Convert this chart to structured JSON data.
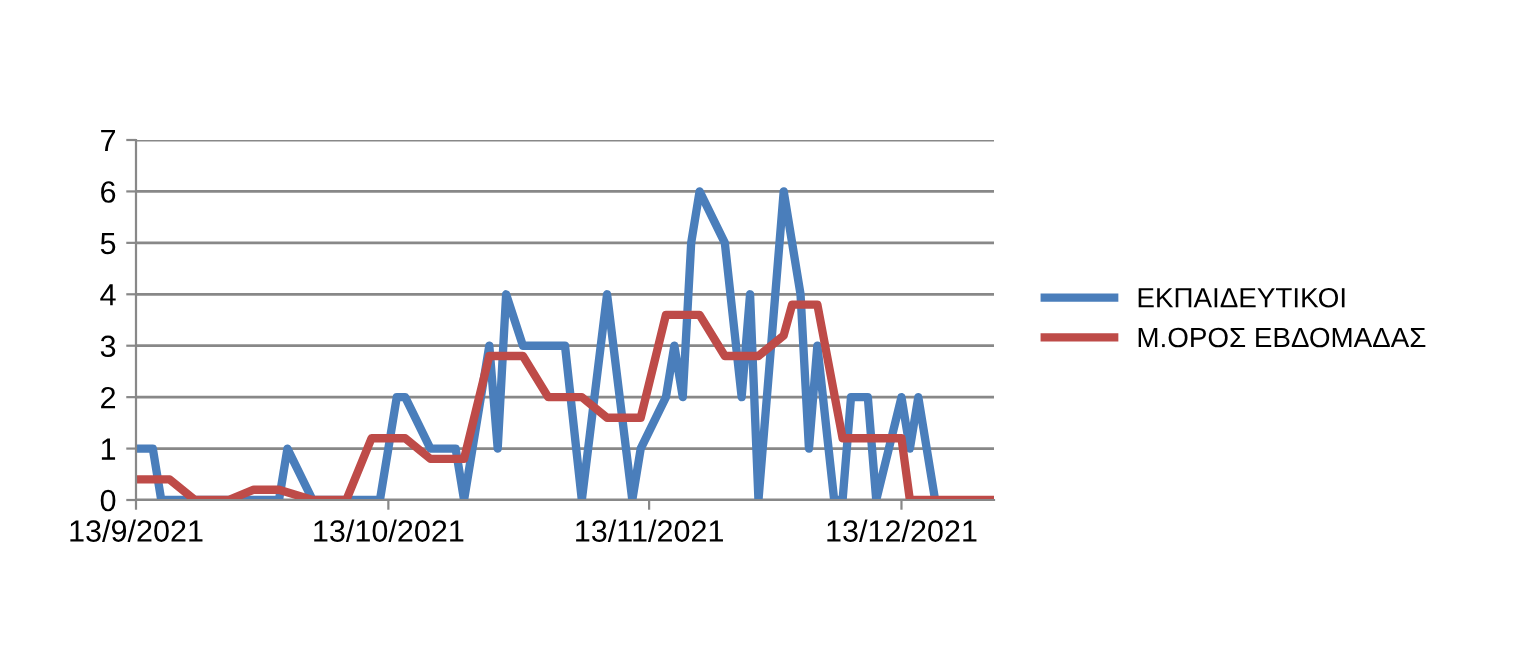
{
  "chart_data": {
    "type": "line",
    "series": [
      {
        "name": "ΕΚΠΑΙΔΕΥΤΙΚΟΙ",
        "color": "#4a7ebb",
        "x": [
          "2021-09-13",
          "2021-09-15",
          "2021-09-16",
          "2021-09-30",
          "2021-10-01",
          "2021-10-04",
          "2021-10-12",
          "2021-10-14",
          "2021-10-15",
          "2021-10-18",
          "2021-10-21",
          "2021-10-22",
          "2021-10-25",
          "2021-10-26",
          "2021-10-27",
          "2021-10-29",
          "2021-11-03",
          "2021-11-05",
          "2021-11-08",
          "2021-11-11",
          "2021-11-12",
          "2021-11-15",
          "2021-11-16",
          "2021-11-17",
          "2021-11-18",
          "2021-11-19",
          "2021-11-22",
          "2021-11-24",
          "2021-11-25",
          "2021-11-26",
          "2021-11-29",
          "2021-12-01",
          "2021-12-02",
          "2021-12-03",
          "2021-12-05",
          "2021-12-06",
          "2021-12-07",
          "2021-12-09",
          "2021-12-10",
          "2021-12-13",
          "2021-12-14",
          "2021-12-15",
          "2021-12-17"
        ],
        "values": [
          1,
          1,
          0,
          0,
          1,
          0,
          0,
          2,
          2,
          1,
          1,
          0,
          3,
          1,
          4,
          3,
          3,
          0,
          4,
          0,
          1,
          2,
          3,
          2,
          5,
          6,
          5,
          2,
          4,
          0,
          6,
          4,
          1,
          3,
          0,
          0,
          2,
          2,
          0,
          2,
          1,
          2,
          0
        ]
      },
      {
        "name": "Μ.ΟΡΟΣ ΕΒΔΟΜΑΔΑΣ",
        "color": "#be4b48",
        "x": [
          "2021-09-13",
          "2021-09-17",
          "2021-09-20",
          "2021-09-24",
          "2021-09-27",
          "2021-09-30",
          "2021-10-04",
          "2021-10-08",
          "2021-10-11",
          "2021-10-15",
          "2021-10-18",
          "2021-10-22",
          "2021-10-25",
          "2021-10-29",
          "2021-11-01",
          "2021-11-05",
          "2021-11-08",
          "2021-11-12",
          "2021-11-15",
          "2021-11-19",
          "2021-11-22",
          "2021-11-26",
          "2021-11-29",
          "2021-11-30",
          "2021-12-03",
          "2021-12-06",
          "2021-12-13",
          "2021-12-14",
          "2021-12-24"
        ],
        "values": [
          0.4,
          0.4,
          0,
          0,
          0.2,
          0.2,
          0,
          0,
          1.2,
          1.2,
          0.8,
          0.8,
          2.8,
          2.8,
          2,
          2,
          1.6,
          1.6,
          3.6,
          3.6,
          2.8,
          2.8,
          3.2,
          3.8,
          3.8,
          1.2,
          1.2,
          0,
          0
        ]
      }
    ],
    "xlim": [
      "2021-09-13",
      "2021-12-24"
    ],
    "xticks": [
      {
        "value": "2021-09-13",
        "label": "13/9/2021"
      },
      {
        "value": "2021-10-13",
        "label": "13/10/2021"
      },
      {
        "value": "2021-11-13",
        "label": "13/11/2021"
      },
      {
        "value": "2021-12-13",
        "label": "13/12/2021"
      }
    ],
    "ylim": [
      0,
      7
    ],
    "yticks": [
      0,
      1,
      2,
      3,
      4,
      5,
      6,
      7
    ],
    "grid": "y",
    "legend": "right",
    "marker": "none",
    "line_style": "solid"
  }
}
